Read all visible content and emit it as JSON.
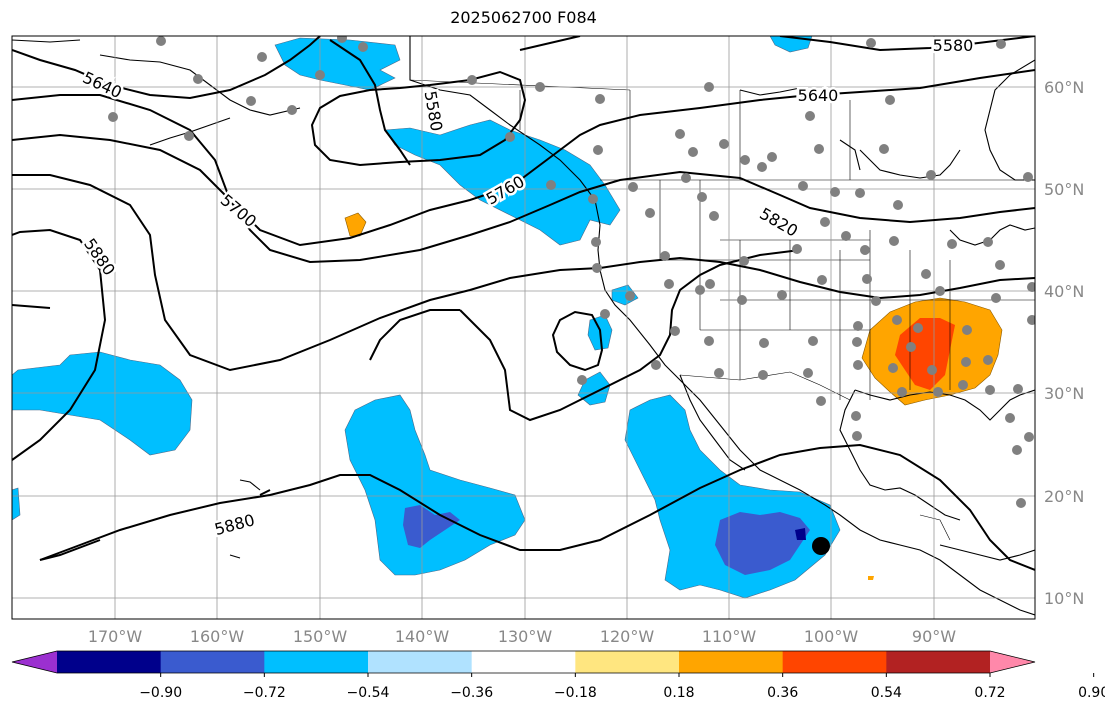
{
  "title": "2025062700 F084",
  "latitude_labels": [
    "60°N",
    "50°N",
    "40°N",
    "30°N",
    "20°N",
    "10°N"
  ],
  "longitude_labels": [
    "170°W",
    "160°W",
    "150°W",
    "140°W",
    "130°W",
    "120°W",
    "110°W",
    "100°W",
    "90°W"
  ],
  "contour_labels": [
    "5640",
    "5580",
    "5700",
    "5880",
    "5760",
    "5820",
    "5640",
    "5580",
    "5880"
  ],
  "colorbar": {
    "ticks": [
      "−0.90",
      "−0.72",
      "−0.54",
      "−0.36",
      "−0.18",
      "0.18",
      "0.36",
      "0.54",
      "0.72",
      "0.90"
    ],
    "colors": [
      "#9b30d0",
      "#00008b",
      "#3a5bcf",
      "#00bfff",
      "#b0e2ff",
      "#ffffff",
      "#ffe680",
      "#ffa500",
      "#ff4500",
      "#b22222",
      "#ff88aa"
    ]
  },
  "colors": {
    "blue_anomaly": "#00bfff",
    "dark_blue_anomaly": "#3a5bcf",
    "orange_anomaly": "#ffa500",
    "red_anomaly": "#ff4500",
    "station_dot": "#808080",
    "marker": "#000000"
  }
}
